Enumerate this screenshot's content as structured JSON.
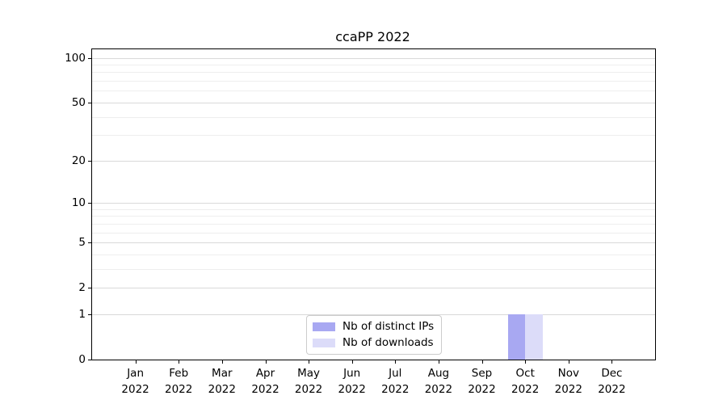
{
  "chart_data": {
    "type": "bar",
    "title": "ccaPP 2022",
    "year_label": "2022",
    "categories": [
      "Jan",
      "Feb",
      "Mar",
      "Apr",
      "May",
      "Jun",
      "Jul",
      "Aug",
      "Sep",
      "Oct",
      "Nov",
      "Dec"
    ],
    "series": [
      {
        "name": "Nb of distinct IPs",
        "color": "#a8a8f2",
        "values": [
          0,
          0,
          0,
          0,
          0,
          0,
          0,
          0,
          0,
          1,
          0,
          0
        ]
      },
      {
        "name": "Nb of downloads",
        "color": "#dcdcf9",
        "values": [
          0,
          0,
          0,
          0,
          0,
          0,
          0,
          0,
          0,
          1,
          0,
          0
        ]
      }
    ],
    "xlabel": "",
    "ylabel": "",
    "y_axis": {
      "scale": "log1p",
      "ticks": [
        0,
        1,
        2,
        5,
        10,
        20,
        50,
        100
      ],
      "minor_gridlines": [
        3,
        4,
        6,
        7,
        8,
        9,
        30,
        40,
        60,
        70,
        80,
        90
      ],
      "max": 114
    },
    "grid": true,
    "legend_position": "lower-center-inside",
    "colors": {
      "major_grid": "#d9d9d9",
      "minor_grid": "#eeeeee",
      "spine": "#000000",
      "text": "#000000",
      "background": "#ffffff"
    }
  }
}
